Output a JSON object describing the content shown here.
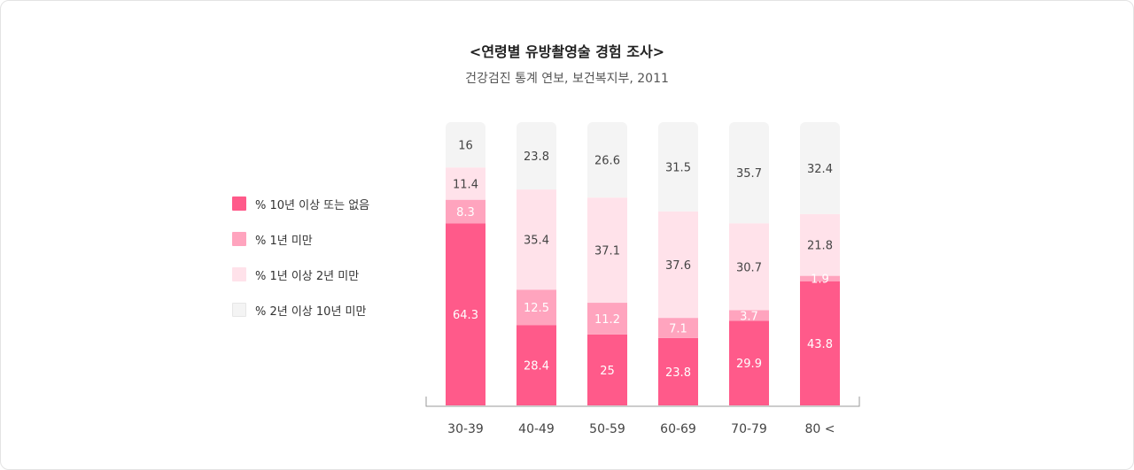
{
  "title": "<연령별 유방촬영술 경험 조사>",
  "subtitle": "건강검진 통계 연보, 보건복지부, 2011",
  "colors": {
    "s0": "#ff5a8a",
    "s1": "#ffa4be",
    "s2": "#ffe2ea",
    "s3": "#f4f4f4"
  },
  "legend": [
    {
      "label": "% 10년 이상 또는 없음",
      "color": "#ff5a8a"
    },
    {
      "label": "% 1년 미만",
      "color": "#ffa4be"
    },
    {
      "label": "% 1년 이상 2년 미만",
      "color": "#ffe2ea"
    },
    {
      "label": "% 2년 이상 10년 미만",
      "color": "#f4f4f4"
    }
  ],
  "chart_data": {
    "type": "bar",
    "stacked": true,
    "categories": [
      "30-39",
      "40-49",
      "50-59",
      "60-69",
      "70-79",
      "80 <"
    ],
    "series": [
      {
        "name": "% 10년 이상 또는 없음",
        "values": [
          64.3,
          28.4,
          25,
          23.8,
          29.9,
          43.8
        ]
      },
      {
        "name": "% 1년 미만",
        "values": [
          8.3,
          12.5,
          11.2,
          7.1,
          3.7,
          1.9
        ]
      },
      {
        "name": "% 1년 이상 2년 미만",
        "values": [
          11.4,
          35.4,
          37.1,
          37.6,
          30.7,
          21.8
        ]
      },
      {
        "name": "% 2년 이상 10년 미만",
        "values": [
          16,
          23.8,
          26.6,
          31.5,
          35.7,
          32.4
        ]
      }
    ],
    "ylim": [
      0,
      100
    ],
    "legend_position": "left"
  }
}
